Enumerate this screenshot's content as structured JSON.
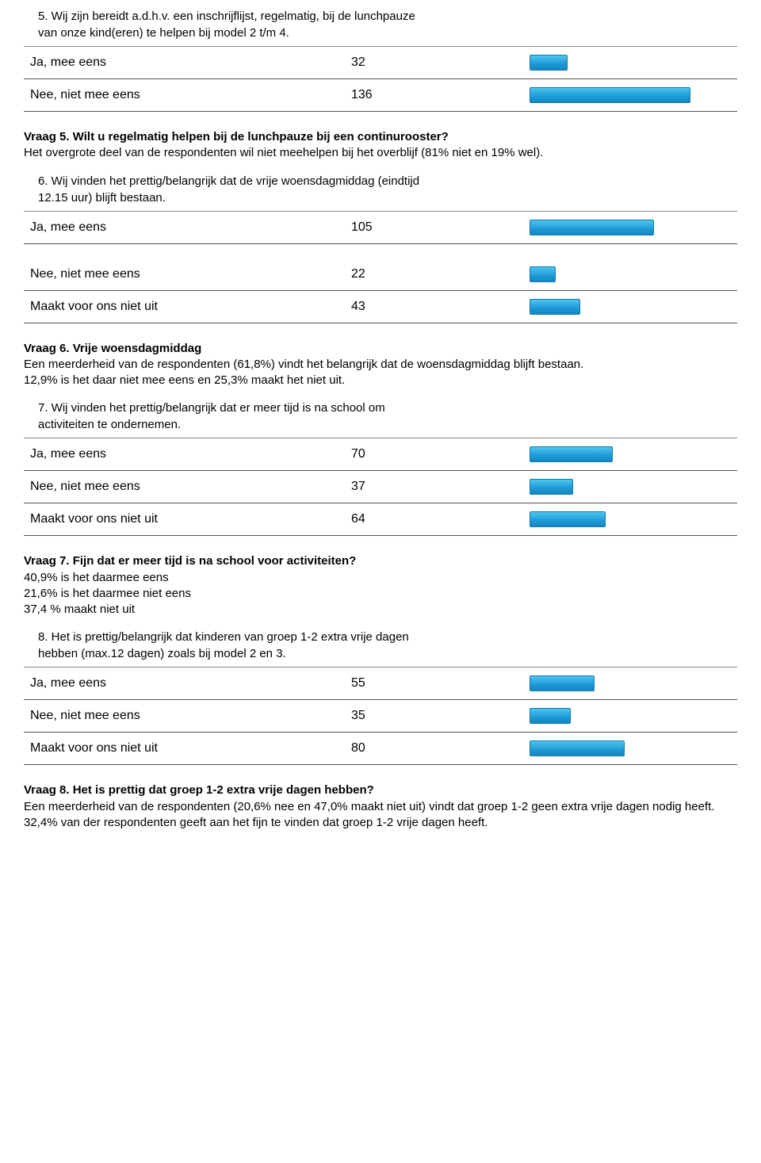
{
  "bar_max_value": 170,
  "colors": {
    "text": "#000000",
    "row_border": "#555555",
    "bar_gradient_top": "#4fc5ef",
    "bar_gradient_mid": "#1d9ad6",
    "bar_gradient_bot": "#1686c0",
    "bar_border": "#117aa8",
    "background": "#ffffff"
  },
  "sections": [
    {
      "question": "5. Wij zijn bereidt a.d.h.v. een inschrijflijst, regelmatig, bij de lunchpauze van onze kind(eren) te helpen bij model 2 t/m 4.",
      "rows": [
        {
          "label": "Ja, mee eens",
          "value": 32
        },
        {
          "label": "Nee, niet mee eens",
          "value": 136
        }
      ],
      "commentary_heading": "Vraag 5. Wilt u regelmatig helpen bij de lunchpauze bij een continurooster?",
      "commentary_body": "Het overgrote deel van de respondenten wil niet meehelpen bij het overblijf (81% niet en 19% wel)."
    },
    {
      "question": "6. Wij vinden het prettig/belangrijk dat de vrije woensdagmiddag (eindtijd 12.15 uur) blijft bestaan.",
      "rows": [
        {
          "label": "Ja, mee eens",
          "value": 105
        },
        {
          "label": "Nee, niet mee eens",
          "value": 22
        },
        {
          "label": "Maakt voor ons niet uit",
          "value": 43
        }
      ],
      "commentary_heading": "Vraag 6. Vrije woensdagmiddag",
      "commentary_body": "Een meerderheid van de respondenten (61,8%) vindt het belangrijk dat de woensdagmiddag blijft bestaan.\n12,9% is het daar niet mee eens en 25,3% maakt het niet uit."
    },
    {
      "question": "7. Wij vinden het prettig/belangrijk dat er meer tijd is na school om activiteiten te ondernemen.",
      "rows": [
        {
          "label": "Ja, mee eens",
          "value": 70
        },
        {
          "label": "Nee, niet mee eens",
          "value": 37
        },
        {
          "label": "Maakt voor ons niet uit",
          "value": 64
        }
      ],
      "commentary_heading": "Vraag 7. Fijn dat er meer tijd is na school voor activiteiten?",
      "commentary_body": "40,9% is het daarmee eens\n21,6% is het daarmee niet eens\n37,4 % maakt niet uit"
    },
    {
      "question": "8. Het is prettig/belangrijk dat kinderen van groep 1-2 extra vrije dagen hebben (max.12 dagen) zoals bij model 2 en 3.",
      "rows": [
        {
          "label": "Ja, mee eens",
          "value": 55
        },
        {
          "label": "Nee, niet mee eens",
          "value": 35
        },
        {
          "label": "Maakt voor ons niet uit",
          "value": 80
        }
      ],
      "commentary_heading": "Vraag 8. Het is prettig dat groep 1-2 extra vrije dagen hebben?",
      "commentary_body": "Een meerderheid van de respondenten (20,6% nee en 47,0% maakt niet uit) vindt dat groep 1-2 geen extra vrije dagen nodig heeft.\n32,4% van der respondenten geeft aan het fijn te vinden dat groep 1-2 vrije dagen heeft."
    }
  ]
}
